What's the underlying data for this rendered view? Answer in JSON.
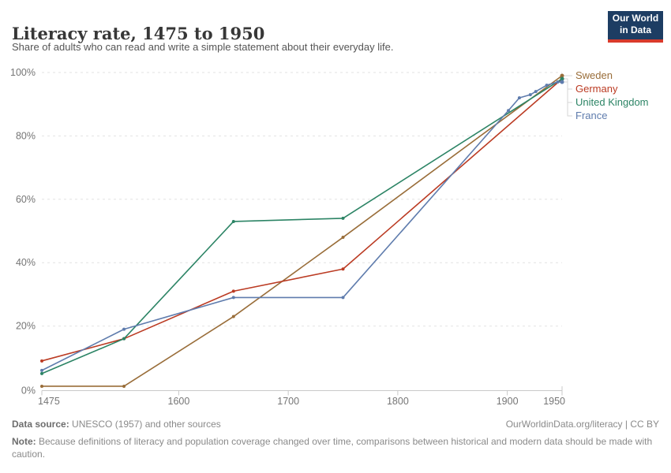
{
  "header": {
    "title": "Literacy rate, 1475 to 1950",
    "subtitle": "Share of adults who can read and write a simple statement about their everyday life.",
    "logo": {
      "line1": "Our World",
      "line2": "in Data",
      "bg_color": "#1d3d63",
      "accent_color": "#d93a2b"
    }
  },
  "chart_data": {
    "type": "line",
    "title": "Literacy rate, 1475 to 1950",
    "xlabel": "",
    "ylabel": "",
    "xlim": [
      1475,
      1950
    ],
    "ylim": [
      0,
      100
    ],
    "x_ticks": [
      1475,
      1600,
      1700,
      1800,
      1900,
      1950
    ],
    "y_ticks": [
      0,
      20,
      40,
      60,
      80,
      100
    ],
    "y_tick_suffix": "%",
    "grid": "horizontal-dashed",
    "legend_position": "right",
    "colors": {
      "grid": "#e2e2e2",
      "axis": "#c9c9c9",
      "tick_label": "#757575",
      "legend_connector": "#d6d6d6"
    },
    "series": [
      {
        "name": "Sweden",
        "color": "#996D39",
        "points": [
          [
            1475,
            1
          ],
          [
            1550,
            1
          ],
          [
            1650,
            23
          ],
          [
            1750,
            48
          ],
          [
            1950,
            99
          ]
        ]
      },
      {
        "name": "Germany",
        "color": "#BB3B23",
        "points": [
          [
            1475,
            9
          ],
          [
            1550,
            16
          ],
          [
            1650,
            31
          ],
          [
            1750,
            38
          ],
          [
            1950,
            98
          ]
        ]
      },
      {
        "name": "United Kingdom",
        "color": "#2C8465",
        "points": [
          [
            1475,
            5
          ],
          [
            1550,
            16
          ],
          [
            1650,
            53
          ],
          [
            1750,
            54
          ],
          [
            1950,
            98
          ]
        ]
      },
      {
        "name": "France",
        "color": "#5F7CAD",
        "points": [
          [
            1475,
            6
          ],
          [
            1550,
            19
          ],
          [
            1650,
            29
          ],
          [
            1750,
            29
          ],
          [
            1901,
            88
          ],
          [
            1911,
            92
          ],
          [
            1921,
            93
          ],
          [
            1926,
            94
          ],
          [
            1936,
            96
          ],
          [
            1946,
            97
          ],
          [
            1950,
            97
          ]
        ]
      }
    ]
  },
  "footer": {
    "datasource_label": "Data source:",
    "datasource_text": " UNESCO (1957) and other sources",
    "link": "OurWorldinData.org/literacy | CC BY",
    "note_label": "Note:",
    "note_text": " Because definitions of literacy and population coverage changed over time, comparisons between historical and modern data should be made with caution."
  }
}
